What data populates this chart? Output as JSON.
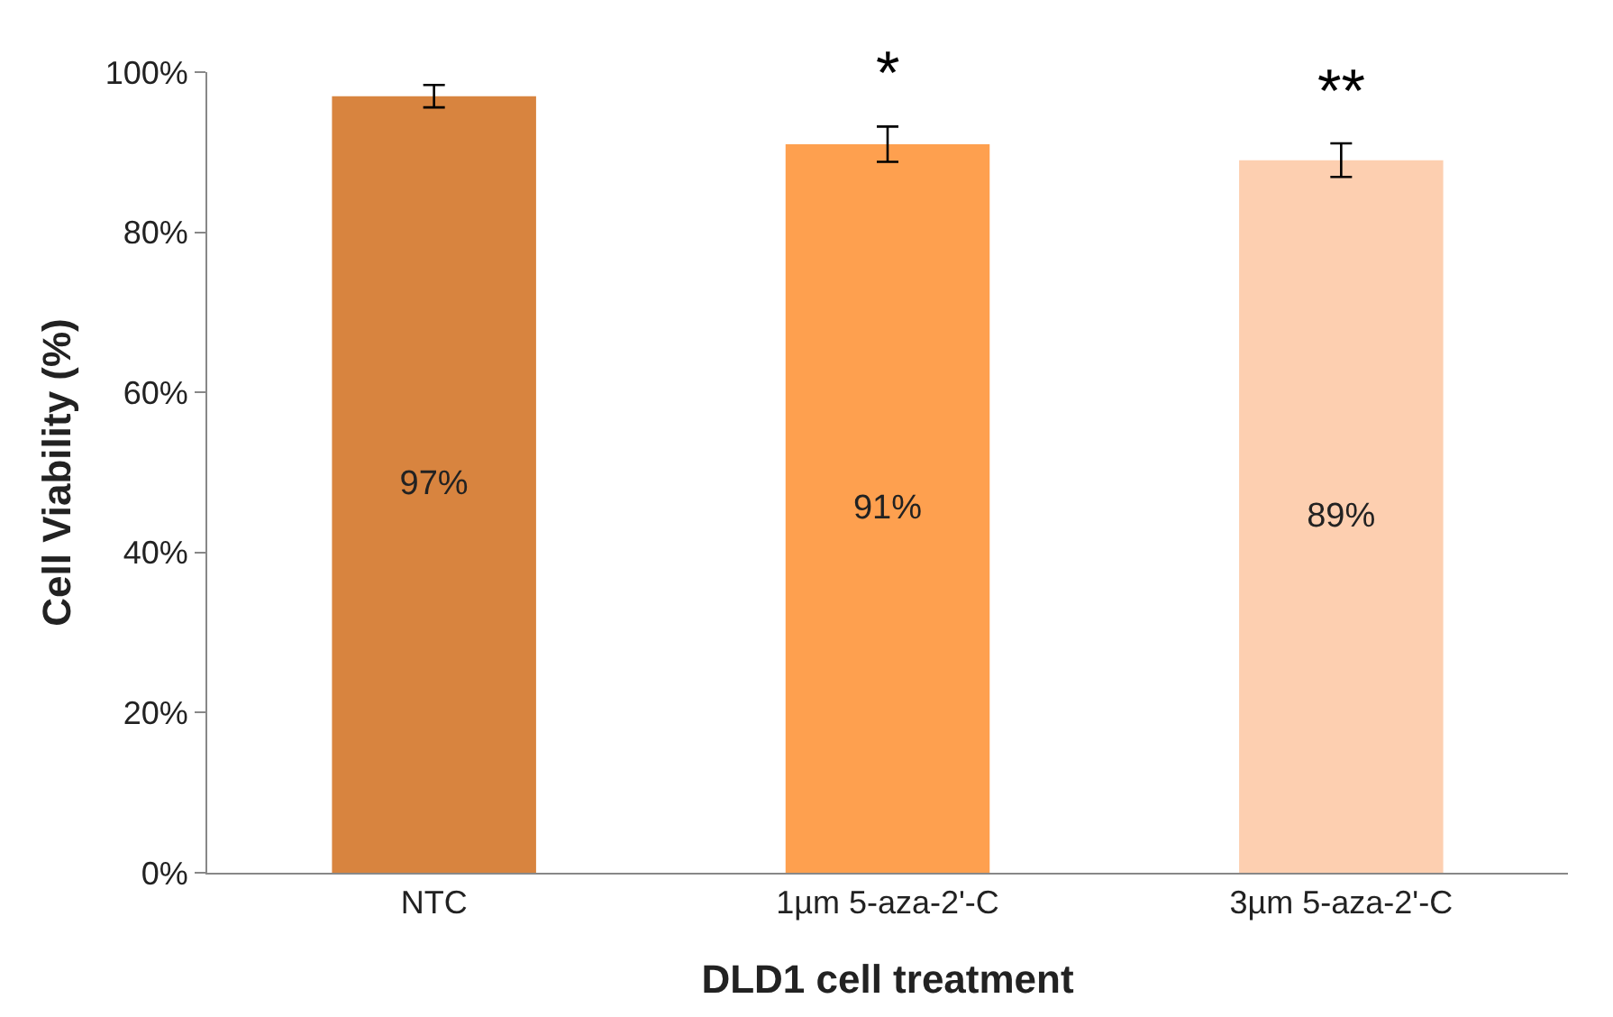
{
  "chart_data": {
    "type": "bar",
    "xlabel": "DLD1 cell treatment",
    "ylabel": "Cell Viability (%)",
    "categories": [
      "NTC",
      "1µm 5-aza-2'-C",
      "3µm 5-aza-2'-C"
    ],
    "values": [
      97,
      91,
      89
    ],
    "colors": [
      "#d8843f",
      "#fea04f",
      "#fdcfb0"
    ],
    "errors": [
      1.4,
      2.2,
      2.1
    ],
    "value_labels": [
      "97%",
      "91%",
      "89%"
    ],
    "ylim": [
      0,
      100
    ],
    "yticks": [
      {
        "value": 0,
        "label": "0%"
      },
      {
        "value": 20,
        "label": "20%"
      },
      {
        "value": 40,
        "label": "40%"
      },
      {
        "value": 60,
        "label": "60%"
      },
      {
        "value": 80,
        "label": "80%"
      },
      {
        "value": 100,
        "label": "100%"
      }
    ],
    "annotations": [
      {
        "text": "*",
        "x": "1µm 5-aza-2'-C",
        "y": 93.2
      },
      {
        "text": "**",
        "x": "3µm 5-aza-2'-C",
        "y": 91.1
      }
    ]
  }
}
